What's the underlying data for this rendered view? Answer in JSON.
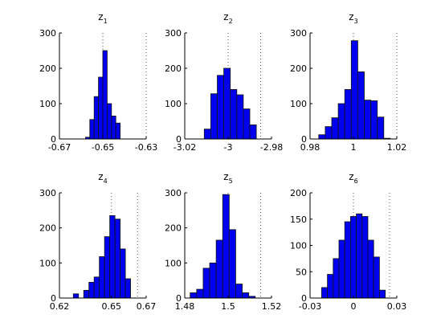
{
  "chart_data": [
    {
      "type": "bar",
      "title_main": "z",
      "title_sub": "1",
      "xlim": [
        -0.67,
        -0.63
      ],
      "ylim": [
        0,
        300
      ],
      "xticks": [
        -0.67,
        -0.65,
        -0.63
      ],
      "xtick_labels": [
        "-0.67",
        "-0.65",
        "-0.63"
      ],
      "yticks": [
        0,
        100,
        200,
        300
      ],
      "ytick_labels": [
        "0",
        "100",
        "200",
        "300"
      ],
      "refline_x": [
        -0.65,
        -0.63
      ],
      "bin_edges": [
        -0.658,
        -0.656,
        -0.654,
        -0.652,
        -0.65,
        -0.648,
        -0.646,
        -0.644,
        -0.642
      ],
      "counts": [
        5,
        55,
        120,
        175,
        250,
        100,
        65,
        45
      ]
    },
    {
      "type": "bar",
      "title_main": "z",
      "title_sub": "2",
      "xlim": [
        -3.02,
        -2.98
      ],
      "ylim": [
        0,
        300
      ],
      "xticks": [
        -3.02,
        -3.0,
        -2.98
      ],
      "xtick_labels": [
        "-3.02",
        "-3",
        "-2.98"
      ],
      "yticks": [
        0,
        100,
        200,
        300
      ],
      "ytick_labels": [
        "0",
        "100",
        "200",
        "300"
      ],
      "refline_x": [
        -3.0,
        -2.985
      ],
      "bin_edges": [
        -3.011,
        -3.008,
        -3.005,
        -3.002,
        -2.999,
        -2.996,
        -2.993,
        -2.99,
        -2.987
      ],
      "counts": [
        28,
        128,
        180,
        200,
        140,
        125,
        85,
        40
      ]
    },
    {
      "type": "bar",
      "title_main": "z",
      "title_sub": "3",
      "xlim": [
        0.98,
        1.02
      ],
      "ylim": [
        0,
        300
      ],
      "xticks": [
        0.98,
        1.0,
        1.02
      ],
      "xtick_labels": [
        "0.98",
        "1",
        "1.02"
      ],
      "yticks": [
        0,
        100,
        200,
        300
      ],
      "ytick_labels": [
        "0",
        "100",
        "200",
        "300"
      ],
      "refline_x": [
        1.0,
        1.02
      ],
      "bin_edges": [
        0.984,
        0.987,
        0.99,
        0.993,
        0.996,
        0.999,
        1.002,
        1.005,
        1.008,
        1.011,
        1.014,
        1.017
      ],
      "counts": [
        12,
        35,
        60,
        100,
        140,
        278,
        190,
        110,
        108,
        62,
        2
      ]
    },
    {
      "type": "bar",
      "title_main": "z",
      "title_sub": "4",
      "xlim": [
        0.62,
        0.67
      ],
      "ylim": [
        0,
        300
      ],
      "xticks": [
        0.62,
        0.65,
        0.67
      ],
      "xtick_labels": [
        "0.62",
        "0.65",
        "0.67"
      ],
      "yticks": [
        0,
        100,
        200,
        300
      ],
      "ytick_labels": [
        "0",
        "100",
        "200",
        "300"
      ],
      "refline_x": [
        0.65,
        0.665
      ],
      "bin_edges": [
        0.628,
        0.631,
        0.634,
        0.637,
        0.64,
        0.643,
        0.646,
        0.649,
        0.652,
        0.655,
        0.658,
        0.661
      ],
      "counts": [
        12,
        0,
        22,
        45,
        60,
        118,
        175,
        235,
        225,
        140,
        55
      ]
    },
    {
      "type": "bar",
      "title_main": "z",
      "title_sub": "5",
      "xlim": [
        1.48,
        1.52
      ],
      "ylim": [
        0,
        300
      ],
      "xticks": [
        1.48,
        1.5,
        1.52
      ],
      "xtick_labels": [
        "1.48",
        "1.5",
        "1.52"
      ],
      "yticks": [
        0,
        100,
        200,
        300
      ],
      "ytick_labels": [
        "0",
        "100",
        "200",
        "300"
      ],
      "refline_x": [
        1.5,
        1.515
      ],
      "bin_edges": [
        1.4825,
        1.4855,
        1.4885,
        1.4915,
        1.4945,
        1.4975,
        1.5005,
        1.5035,
        1.5065,
        1.5095,
        1.5125
      ],
      "counts": [
        15,
        25,
        85,
        100,
        165,
        295,
        195,
        40,
        15,
        5
      ]
    },
    {
      "type": "bar",
      "title_main": "z",
      "title_sub": "6",
      "xlim": [
        -0.03,
        0.03
      ],
      "ylim": [
        0,
        200
      ],
      "xticks": [
        -0.03,
        0.0,
        0.03
      ],
      "xtick_labels": [
        "-0.03",
        "0",
        "0.03"
      ],
      "yticks": [
        0,
        50,
        100,
        150,
        200
      ],
      "ytick_labels": [
        "0",
        "50",
        "100",
        "150",
        "200"
      ],
      "refline_x": [
        0.0,
        0.025
      ],
      "bin_edges": [
        -0.022,
        -0.018,
        -0.014,
        -0.01,
        -0.006,
        -0.002,
        0.002,
        0.006,
        0.01,
        0.014,
        0.018,
        0.022
      ],
      "counts": [
        20,
        45,
        75,
        110,
        145,
        155,
        160,
        155,
        110,
        78,
        15
      ]
    }
  ]
}
